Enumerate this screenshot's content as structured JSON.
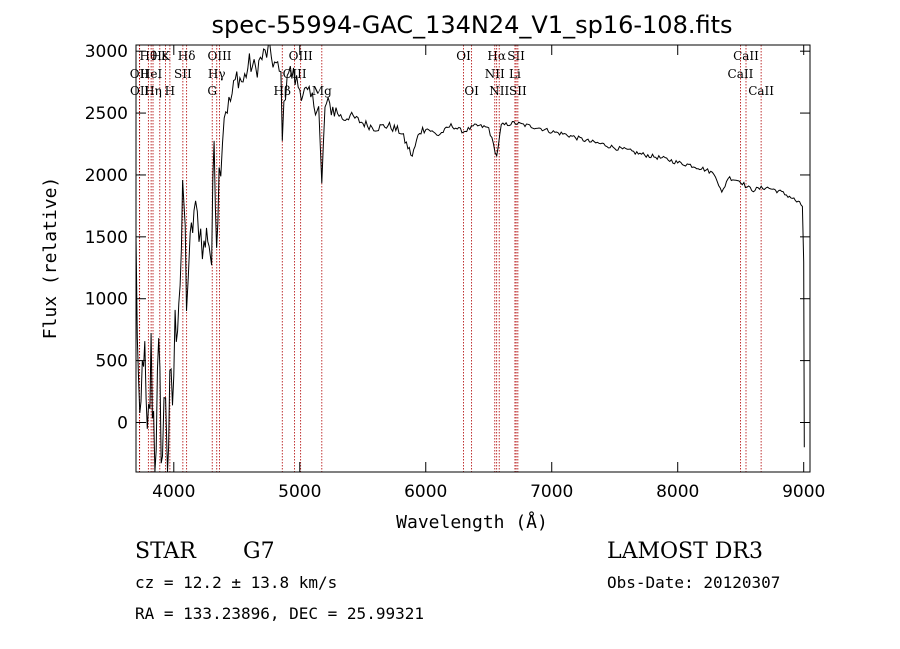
{
  "chart_data": {
    "type": "line",
    "title": "spec-55994-GAC_134N24_V1_sp16-108.fits",
    "xlabel": "Wavelength (Å)",
    "ylabel": "Flux (relative)",
    "xlim": [
      3700,
      9050
    ],
    "ylim": [
      -400,
      3050
    ],
    "xticks": [
      4000,
      5000,
      6000,
      7000,
      8000,
      9000
    ],
    "yticks": [
      0,
      500,
      1000,
      1500,
      2000,
      2500,
      3000
    ],
    "grid": false,
    "series": [
      {
        "color": "#000000",
        "x": [
          3700,
          3730,
          3760,
          3790,
          3820,
          3850,
          3880,
          3910,
          3935,
          3950,
          3968,
          3990,
          4020,
          4050,
          4080,
          4101,
          4130,
          4160,
          4200,
          4240,
          4270,
          4300,
          4320,
          4340,
          4360,
          4400,
          4450,
          4500,
          4550,
          4600,
          4650,
          4700,
          4750,
          4800,
          4850,
          4861,
          4900,
          4950,
          5000,
          5050,
          5100,
          5150,
          5175,
          5200,
          5250,
          5300,
          5350,
          5400,
          5500,
          5600,
          5700,
          5800,
          5893,
          5950,
          6000,
          6100,
          6200,
          6300,
          6400,
          6500,
          6563,
          6600,
          6700,
          6800,
          6900,
          7000,
          7100,
          7200,
          7300,
          7400,
          7500,
          7600,
          7700,
          7800,
          7900,
          8000,
          8100,
          8200,
          8250,
          8300,
          8350,
          8400,
          8500,
          8550,
          8600,
          8700,
          8800,
          8900,
          8990,
          9000,
          9005
        ],
        "values": [
          1400,
          -300,
          700,
          -300,
          500,
          -200,
          400,
          -250,
          300,
          -300,
          100,
          200,
          900,
          1200,
          1800,
          1000,
          1400,
          1700,
          1600,
          1400,
          1550,
          1300,
          2300,
          1500,
          2000,
          2500,
          2600,
          2800,
          2750,
          2900,
          2850,
          2950,
          3000,
          2900,
          2800,
          2350,
          2850,
          2800,
          2700,
          2650,
          2600,
          2550,
          1900,
          2550,
          2550,
          2500,
          2450,
          2480,
          2420,
          2380,
          2400,
          2350,
          2150,
          2350,
          2380,
          2320,
          2400,
          2350,
          2400,
          2380,
          2150,
          2400,
          2420,
          2400,
          2380,
          2350,
          2330,
          2300,
          2270,
          2250,
          2220,
          2200,
          2170,
          2150,
          2130,
          2100,
          2080,
          2050,
          2030,
          2000,
          1850,
          1980,
          1950,
          1900,
          1880,
          1900,
          1870,
          1820,
          1750,
          1300,
          -200
        ]
      }
    ],
    "line_markers": [
      {
        "label": "Hθ",
        "x": 3798,
        "row": 0
      },
      {
        "label": "Hε",
        "x": 3889,
        "row": 0
      },
      {
        "label": "K",
        "x": 3934,
        "row": 0
      },
      {
        "label": "Hδ",
        "x": 4102,
        "row": 0
      },
      {
        "label": "OIII",
        "x": 4363,
        "row": 0
      },
      {
        "label": "OIII",
        "x": 5007,
        "row": 0
      },
      {
        "label": "OI",
        "x": 6300,
        "row": 0
      },
      {
        "label": "Hα",
        "x": 6563,
        "row": 0
      },
      {
        "label": "SII",
        "x": 6717,
        "row": 0
      },
      {
        "label": "CaII",
        "x": 8542,
        "row": 0
      },
      {
        "label": "OII",
        "x": 3727,
        "row": 1
      },
      {
        "label": "HeI",
        "x": 3820,
        "row": 1
      },
      {
        "label": "SII",
        "x": 4072,
        "row": 1
      },
      {
        "label": "Hγ",
        "x": 4341,
        "row": 1
      },
      {
        "label": "OIII",
        "x": 4959,
        "row": 1
      },
      {
        "label": "NII",
        "x": 6548,
        "row": 1
      },
      {
        "label": "Li",
        "x": 6708,
        "row": 1
      },
      {
        "label": "CaII",
        "x": 8498,
        "row": 1
      },
      {
        "label": "OII",
        "x": 3729,
        "row": 2
      },
      {
        "label": "Hη",
        "x": 3835,
        "row": 2
      },
      {
        "label": "H",
        "x": 3969,
        "row": 2
      },
      {
        "label": "G",
        "x": 4305,
        "row": 2
      },
      {
        "label": "Hβ",
        "x": 4861,
        "row": 2
      },
      {
        "label": "Mg",
        "x": 5175,
        "row": 2
      },
      {
        "label": "OI",
        "x": 6364,
        "row": 2
      },
      {
        "label": "NII",
        "x": 6583,
        "row": 2
      },
      {
        "label": "SII",
        "x": 6731,
        "row": 2
      },
      {
        "label": "CaII",
        "x": 8662,
        "row": 2
      }
    ]
  },
  "info": {
    "class_label": "STAR",
    "subclass": "G7",
    "cz": "cz = 12.2 ± 13.8 km/s",
    "coords": "RA = 133.23896, DEC =  25.99321",
    "survey": "LAMOST DR3",
    "obs_date": "Obs-Date: 20120307"
  }
}
